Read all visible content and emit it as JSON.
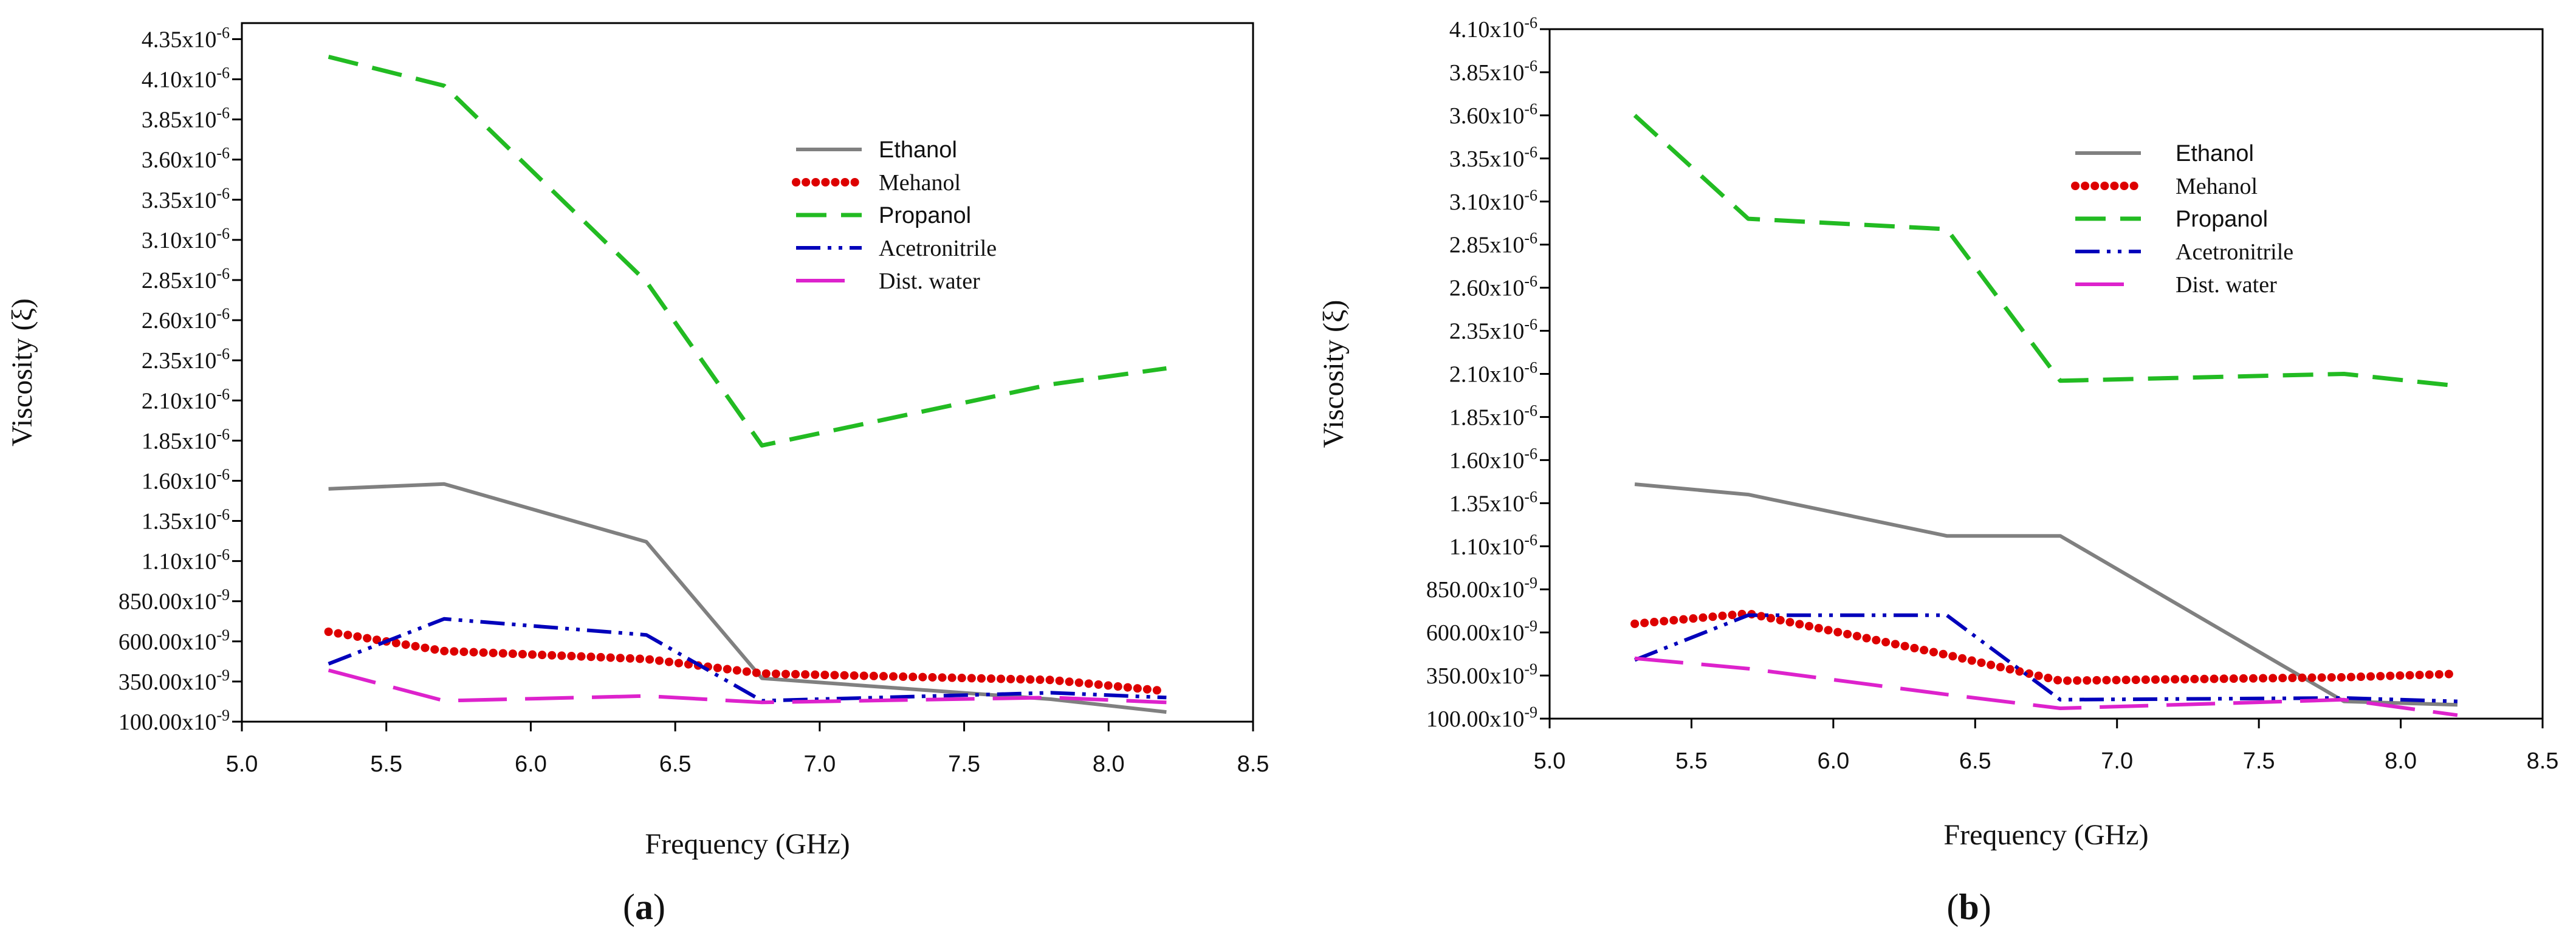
{
  "chart_data": [
    {
      "type": "line",
      "panel_label": "a",
      "xlabel": "Frequency (GHz)",
      "ylabel": "Viscosity (ξ)",
      "xlim": [
        5.0,
        8.5
      ],
      "ylim": [
        1e-07,
        4.45e-06
      ],
      "x_ticks": [
        5.0,
        5.5,
        6.0,
        6.5,
        7.0,
        7.5,
        8.0,
        8.5
      ],
      "x_tick_labels": [
        "5.0",
        "5.5",
        "6.0",
        "6.5",
        "7.0",
        "7.5",
        "8.0",
        "8.5"
      ],
      "y_ticks": [
        {
          "value": 1e-07,
          "mantissa": "100.00x10",
          "exp": "-9"
        },
        {
          "value": 3.5e-07,
          "mantissa": "350.00x10",
          "exp": "-9"
        },
        {
          "value": 6e-07,
          "mantissa": "600.00x10",
          "exp": "-9"
        },
        {
          "value": 8.5e-07,
          "mantissa": "850.00x10",
          "exp": "-9"
        },
        {
          "value": 1.1e-06,
          "mantissa": "1.10x10",
          "exp": "-6"
        },
        {
          "value": 1.35e-06,
          "mantissa": "1.35x10",
          "exp": "-6"
        },
        {
          "value": 1.6e-06,
          "mantissa": "1.60x10",
          "exp": "-6"
        },
        {
          "value": 1.85e-06,
          "mantissa": "1.85x10",
          "exp": "-6"
        },
        {
          "value": 2.1e-06,
          "mantissa": "2.10x10",
          "exp": "-6"
        },
        {
          "value": 2.35e-06,
          "mantissa": "2.35x10",
          "exp": "-6"
        },
        {
          "value": 2.6e-06,
          "mantissa": "2.60x10",
          "exp": "-6"
        },
        {
          "value": 2.85e-06,
          "mantissa": "2.85x10",
          "exp": "-6"
        },
        {
          "value": 3.1e-06,
          "mantissa": "3.10x10",
          "exp": "-6"
        },
        {
          "value": 3.35e-06,
          "mantissa": "3.35x10",
          "exp": "-6"
        },
        {
          "value": 3.6e-06,
          "mantissa": "3.60x10",
          "exp": "-6"
        },
        {
          "value": 3.85e-06,
          "mantissa": "3.85x10",
          "exp": "-6"
        },
        {
          "value": 4.1e-06,
          "mantissa": "4.10x10",
          "exp": "-6"
        },
        {
          "value": 4.35e-06,
          "mantissa": "4.35x10",
          "exp": "-6"
        }
      ],
      "legend_placement": "upper-center-right",
      "series": [
        {
          "name": "Ethanol",
          "style": "solid",
          "color": "#808080",
          "x": [
            5.3,
            5.7,
            6.4,
            6.8,
            7.8,
            8.2
          ],
          "values": [
            1.55e-06,
            1.58e-06,
            1.22e-06,
            3.7e-07,
            2.4e-07,
            1.6e-07
          ]
        },
        {
          "name": "Mehanol",
          "style": "dotted",
          "color": "#dd0000",
          "x": [
            5.3,
            5.7,
            6.4,
            6.8,
            7.8,
            8.2
          ],
          "values": [
            6.6e-07,
            5.4e-07,
            4.9e-07,
            4e-07,
            3.6e-07,
            2.9e-07
          ]
        },
        {
          "name": "Propanol",
          "style": "dashed",
          "color": "#22bb22",
          "x": [
            5.3,
            5.7,
            6.4,
            6.8,
            7.8,
            8.2
          ],
          "values": [
            4.24e-06,
            4.06e-06,
            2.84e-06,
            1.82e-06,
            2.2e-06,
            2.3e-06
          ]
        },
        {
          "name": "Acetronitrile",
          "style": "dashdotdot",
          "color": "#0000bb",
          "x": [
            5.3,
            5.7,
            6.4,
            6.8,
            7.8,
            8.2
          ],
          "values": [
            4.6e-07,
            7.4e-07,
            6.4e-07,
            2.3e-07,
            2.8e-07,
            2.5e-07
          ]
        },
        {
          "name": "Dist. water",
          "style": "longdash",
          "color": "#dd22cc",
          "x": [
            5.3,
            5.7,
            6.4,
            6.8,
            7.8,
            8.2
          ],
          "values": [
            4.2e-07,
            2.3e-07,
            2.6e-07,
            2.2e-07,
            2.5e-07,
            2.2e-07
          ]
        }
      ]
    },
    {
      "type": "line",
      "panel_label": "b",
      "xlabel": "Frequency (GHz)",
      "ylabel": "Viscosity (ξ)",
      "xlim": [
        5.0,
        8.5
      ],
      "ylim": [
        1e-07,
        4.1e-06
      ],
      "x_ticks": [
        5.0,
        5.5,
        6.0,
        6.5,
        7.0,
        7.5,
        8.0,
        8.5
      ],
      "x_tick_labels": [
        "5.0",
        "5.5",
        "6.0",
        "6.5",
        "7.0",
        "7.5",
        "8.0",
        "8.5"
      ],
      "y_ticks": [
        {
          "value": 1e-07,
          "mantissa": "100.00x10",
          "exp": "-9"
        },
        {
          "value": 3.5e-07,
          "mantissa": "350.00x10",
          "exp": "-9"
        },
        {
          "value": 6e-07,
          "mantissa": "600.00x10",
          "exp": "-9"
        },
        {
          "value": 8.5e-07,
          "mantissa": "850.00x10",
          "exp": "-9"
        },
        {
          "value": 1.1e-06,
          "mantissa": "1.10x10",
          "exp": "-6"
        },
        {
          "value": 1.35e-06,
          "mantissa": "1.35x10",
          "exp": "-6"
        },
        {
          "value": 1.6e-06,
          "mantissa": "1.60x10",
          "exp": "-6"
        },
        {
          "value": 1.85e-06,
          "mantissa": "1.85x10",
          "exp": "-6"
        },
        {
          "value": 2.1e-06,
          "mantissa": "2.10x10",
          "exp": "-6"
        },
        {
          "value": 2.35e-06,
          "mantissa": "2.35x10",
          "exp": "-6"
        },
        {
          "value": 2.6e-06,
          "mantissa": "2.60x10",
          "exp": "-6"
        },
        {
          "value": 2.85e-06,
          "mantissa": "2.85x10",
          "exp": "-6"
        },
        {
          "value": 3.1e-06,
          "mantissa": "3.10x10",
          "exp": "-6"
        },
        {
          "value": 3.35e-06,
          "mantissa": "3.35x10",
          "exp": "-6"
        },
        {
          "value": 3.6e-06,
          "mantissa": "3.60x10",
          "exp": "-6"
        },
        {
          "value": 3.85e-06,
          "mantissa": "3.85x10",
          "exp": "-6"
        },
        {
          "value": 4.1e-06,
          "mantissa": "4.10x10",
          "exp": "-6"
        }
      ],
      "legend_placement": "upper-center-right",
      "series": [
        {
          "name": "Ethanol",
          "style": "solid",
          "color": "#808080",
          "x": [
            5.3,
            5.7,
            6.4,
            6.8,
            7.8,
            8.2
          ],
          "values": [
            1.46e-06,
            1.4e-06,
            1.16e-06,
            1.16e-06,
            2e-07,
            1.8e-07
          ]
        },
        {
          "name": "Mehanol",
          "style": "dotted",
          "color": "#dd0000",
          "x": [
            5.3,
            5.7,
            6.4,
            6.8,
            7.8,
            8.2
          ],
          "values": [
            6.5e-07,
            7.1e-07,
            4.7e-07,
            3.2e-07,
            3.4e-07,
            3.6e-07
          ]
        },
        {
          "name": "Propanol",
          "style": "dashed",
          "color": "#22bb22",
          "x": [
            5.3,
            5.7,
            6.4,
            6.8,
            7.8,
            8.2
          ],
          "values": [
            3.6e-06,
            3e-06,
            2.94e-06,
            2.06e-06,
            2.1e-06,
            2.03e-06
          ]
        },
        {
          "name": "Acetronitrile",
          "style": "dashdotdot",
          "color": "#0000bb",
          "x": [
            5.3,
            5.7,
            6.4,
            6.8,
            7.8,
            8.2
          ],
          "values": [
            4.4e-07,
            7e-07,
            7e-07,
            2.1e-07,
            2.2e-07,
            2e-07
          ]
        },
        {
          "name": "Dist. water",
          "style": "longdash",
          "color": "#dd22cc",
          "x": [
            5.3,
            5.7,
            6.4,
            6.8,
            7.8,
            8.2
          ],
          "values": [
            4.5e-07,
            3.9e-07,
            2.4e-07,
            1.6e-07,
            2.1e-07,
            1.2e-07
          ]
        }
      ]
    }
  ]
}
